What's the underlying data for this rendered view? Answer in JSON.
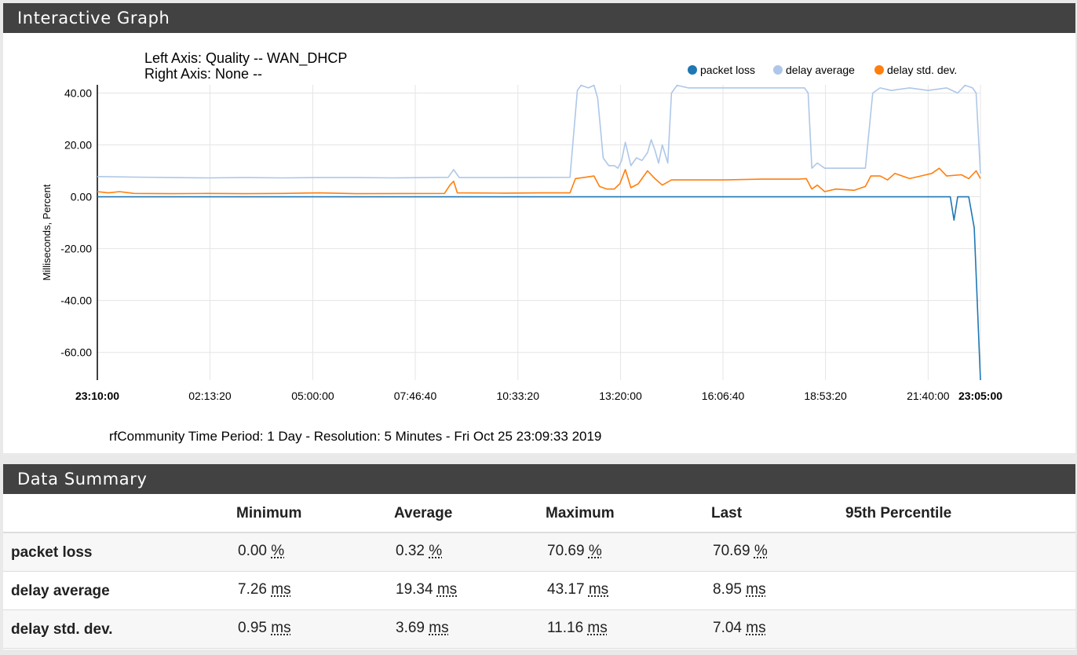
{
  "graph_panel": {
    "title": "Interactive Graph"
  },
  "summary_panel": {
    "title": "Data Summary"
  },
  "chart_data": {
    "type": "line",
    "title_lines": [
      "Left Axis: Quality -- WAN_DHCP",
      "Right Axis: None --"
    ],
    "ylabel": "Milliseconds, Percent",
    "ylim": [
      -70.69,
      43.17
    ],
    "y_ticks": [
      40,
      20,
      0,
      -20,
      -40,
      -60
    ],
    "y_tick_labels": [
      "40.00",
      "20.00",
      "0.00",
      "-20.00",
      "-40.00",
      "-60.00"
    ],
    "x_ticks": [
      0,
      3.05,
      5.835,
      8.61,
      11.39,
      14.17,
      16.945,
      19.72,
      22.5,
      23.917
    ],
    "x_tick_labels": [
      "23:10:00",
      "02:13:20",
      "05:00:00",
      "07:46:40",
      "10:33:20",
      "13:20:00",
      "16:06:40",
      "18:53:20",
      "21:40:00",
      "23:05:00"
    ],
    "x_bold_ticks": [
      0,
      9
    ],
    "xlim": [
      0,
      23.917
    ],
    "footer_text": "rfCommunity    Time Period: 1 Day  -  Resolution: 5 Minutes  -  Fri Oct 25 23:09:33 2019",
    "legend_position": "top-right",
    "series": [
      {
        "name": "packet loss",
        "color": "#1f77b4",
        "points": [
          [
            0,
            0
          ],
          [
            23.1,
            0
          ],
          [
            23.2,
            -9
          ],
          [
            23.3,
            0
          ],
          [
            23.6,
            0
          ],
          [
            23.75,
            -12
          ],
          [
            23.917,
            -70.69
          ]
        ]
      },
      {
        "name": "delay average",
        "color": "#aec7e8",
        "points": [
          [
            0,
            7.8
          ],
          [
            1,
            7.6
          ],
          [
            2,
            7.4
          ],
          [
            3,
            7.3
          ],
          [
            4,
            7.4
          ],
          [
            5,
            7.3
          ],
          [
            6,
            7.4
          ],
          [
            7,
            7.4
          ],
          [
            8,
            7.3
          ],
          [
            9.5,
            7.5
          ],
          [
            9.65,
            10.5
          ],
          [
            9.8,
            7.4
          ],
          [
            11,
            7.4
          ],
          [
            12.8,
            7.5
          ],
          [
            13.0,
            41
          ],
          [
            13.1,
            43
          ],
          [
            13.3,
            42
          ],
          [
            13.45,
            43
          ],
          [
            13.55,
            38
          ],
          [
            13.7,
            15
          ],
          [
            13.85,
            12
          ],
          [
            14.0,
            12
          ],
          [
            14.1,
            11
          ],
          [
            14.2,
            14
          ],
          [
            14.3,
            21
          ],
          [
            14.45,
            12
          ],
          [
            14.6,
            15
          ],
          [
            14.75,
            14
          ],
          [
            14.9,
            17
          ],
          [
            15.0,
            22
          ],
          [
            15.1,
            18
          ],
          [
            15.2,
            13
          ],
          [
            15.3,
            20
          ],
          [
            15.45,
            13
          ],
          [
            15.55,
            40
          ],
          [
            15.7,
            43
          ],
          [
            16,
            42
          ],
          [
            17,
            42
          ],
          [
            18,
            42
          ],
          [
            19,
            42
          ],
          [
            19.15,
            42
          ],
          [
            19.25,
            40
          ],
          [
            19.35,
            11
          ],
          [
            19.5,
            13
          ],
          [
            19.7,
            11
          ],
          [
            20.0,
            11
          ],
          [
            20.5,
            11
          ],
          [
            20.8,
            11
          ],
          [
            21.0,
            40
          ],
          [
            21.2,
            42
          ],
          [
            21.5,
            41
          ],
          [
            22,
            42
          ],
          [
            22.5,
            41
          ],
          [
            23.0,
            42
          ],
          [
            23.3,
            40
          ],
          [
            23.5,
            43
          ],
          [
            23.7,
            42
          ],
          [
            23.8,
            40
          ],
          [
            23.917,
            8.95
          ]
        ]
      },
      {
        "name": "delay std. dev.",
        "color": "#ff7f0e",
        "points": [
          [
            0,
            2
          ],
          [
            0.3,
            1.5
          ],
          [
            0.6,
            2
          ],
          [
            1,
            1.3
          ],
          [
            2,
            1.2
          ],
          [
            3,
            1.3
          ],
          [
            4,
            1.2
          ],
          [
            5,
            1.3
          ],
          [
            6,
            1.5
          ],
          [
            7,
            1.2
          ],
          [
            9.4,
            1.3
          ],
          [
            9.55,
            4.5
          ],
          [
            9.65,
            6
          ],
          [
            9.75,
            1.5
          ],
          [
            11,
            1.4
          ],
          [
            12,
            1.5
          ],
          [
            12.8,
            1.5
          ],
          [
            12.95,
            7
          ],
          [
            13.2,
            7.5
          ],
          [
            13.45,
            8
          ],
          [
            13.6,
            4
          ],
          [
            13.8,
            3
          ],
          [
            14.0,
            3
          ],
          [
            14.15,
            5
          ],
          [
            14.3,
            10.5
          ],
          [
            14.45,
            3.5
          ],
          [
            14.65,
            5
          ],
          [
            14.9,
            10
          ],
          [
            15.1,
            7
          ],
          [
            15.3,
            4.5
          ],
          [
            15.55,
            6.5
          ],
          [
            16,
            6.5
          ],
          [
            17,
            6.5
          ],
          [
            18,
            6.8
          ],
          [
            19.0,
            6.8
          ],
          [
            19.2,
            7
          ],
          [
            19.35,
            3
          ],
          [
            19.5,
            4.5
          ],
          [
            19.7,
            2
          ],
          [
            20.0,
            3
          ],
          [
            20.5,
            2.5
          ],
          [
            20.8,
            4
          ],
          [
            20.95,
            8
          ],
          [
            21.2,
            8
          ],
          [
            21.4,
            6.5
          ],
          [
            21.6,
            9
          ],
          [
            22,
            7
          ],
          [
            22.3,
            8
          ],
          [
            22.6,
            9
          ],
          [
            22.8,
            11
          ],
          [
            23.0,
            8
          ],
          [
            23.4,
            8.5
          ],
          [
            23.6,
            7
          ],
          [
            23.8,
            10
          ],
          [
            23.917,
            7.04
          ]
        ]
      }
    ]
  },
  "summary": {
    "columns": [
      "",
      "Minimum",
      "Average",
      "Maximum",
      "Last",
      "95th Percentile"
    ],
    "rows": [
      {
        "label": "packet loss",
        "min": "0.00",
        "avg": "0.32",
        "max": "70.69",
        "last": "70.69",
        "unit": "%"
      },
      {
        "label": "delay average",
        "min": "7.26",
        "avg": "19.34",
        "max": "43.17",
        "last": "8.95",
        "unit": "ms"
      },
      {
        "label": "delay std. dev.",
        "min": "0.95",
        "avg": "3.69",
        "max": "11.16",
        "last": "7.04",
        "unit": "ms"
      }
    ]
  }
}
